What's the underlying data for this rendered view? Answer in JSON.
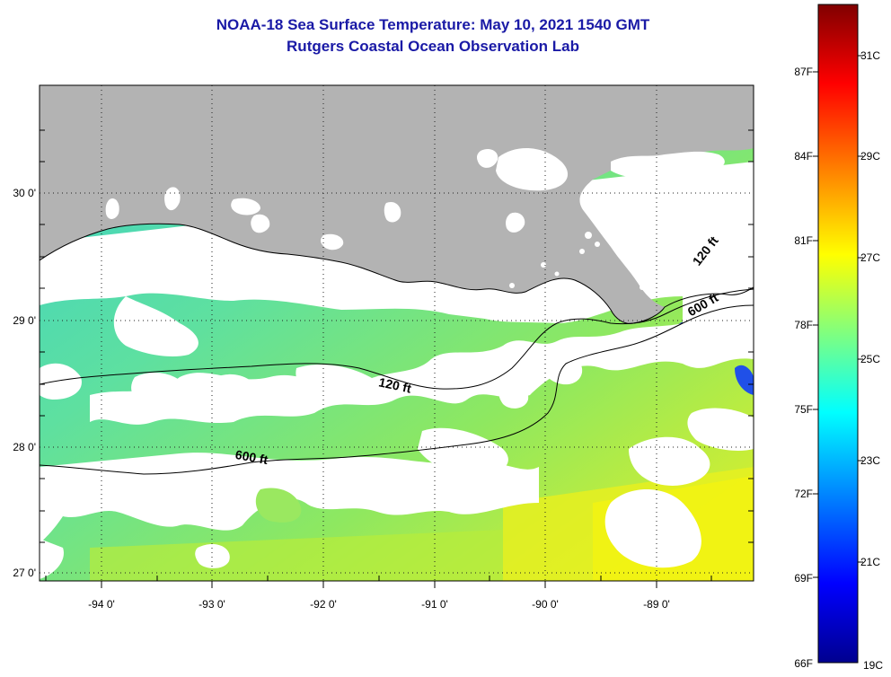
{
  "title": {
    "line1": "NOAA-18 Sea Surface Temperature:  May 10, 2021 1540 GMT",
    "line2": "Rutgers Coastal Ocean Observation Lab"
  },
  "map": {
    "lat_labels": [
      "30 0'",
      "29 0'",
      "28 0'",
      "27 0'"
    ],
    "lon_labels": [
      "-94 0'",
      "-93 0'",
      "-92 0'",
      "-91 0'",
      "-90 0'",
      "-89 0'"
    ],
    "contour_labels": [
      "120 ft",
      "120 ft",
      "600 ft",
      "600 ft"
    ],
    "colors": {
      "land": "#b3b3b3",
      "cloud": "#ffffff",
      "contour": "#000000"
    }
  },
  "colorbar": {
    "fahrenheit_labels": [
      "87F",
      "84F",
      "81F",
      "78F",
      "75F",
      "72F",
      "69F",
      "66F"
    ],
    "celsius_labels": [
      "31C",
      "29C",
      "27C",
      "25C",
      "23C",
      "21C",
      "19C"
    ],
    "range_celsius": [
      19,
      32
    ],
    "colors": [
      "#00008f",
      "#0000ff",
      "#00ffff",
      "#ffff00",
      "#ff0000",
      "#800000"
    ]
  }
}
